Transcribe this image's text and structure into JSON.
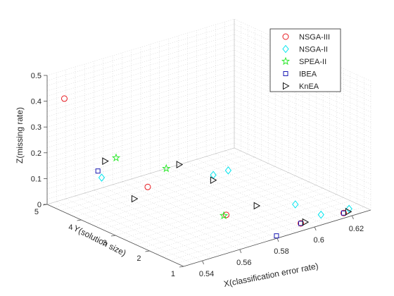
{
  "chart_data": {
    "type": "scatter",
    "title": "",
    "xlabel": "X(classification error rate)",
    "ylabel": "Y(solution size)",
    "zlabel": "Z(missing rate)",
    "xlim": [
      0.53,
      0.63
    ],
    "ylim": [
      1,
      5
    ],
    "zlim": [
      0,
      0.5
    ],
    "x_ticks": [
      "0.54",
      "0.56",
      "0.58",
      "0.6",
      "0.62"
    ],
    "y_ticks": [
      "1",
      "2",
      "3",
      "4",
      "5"
    ],
    "z_ticks": [
      "0",
      "0.1",
      "0.2",
      "0.3",
      "0.4",
      "0.5"
    ],
    "grid": true,
    "legend_position": "top-right",
    "series": [
      {
        "name": "NSGA-III",
        "marker": "circle",
        "color": "#e8181e",
        "points": [
          {
            "x": 0.5392,
            "y": 5.0,
            "z": 0.39
          },
          {
            "x": 0.5564,
            "y": 3.5,
            "z": 0.1
          },
          {
            "x": 0.571,
            "y": 2.0,
            "z": 0.05
          },
          {
            "x": 0.5926,
            "y": 1.0,
            "z": 0.03
          },
          {
            "x": 0.6155,
            "y": 1.0,
            "z": 0.02
          }
        ]
      },
      {
        "name": "NSGA-II",
        "marker": "diamond",
        "color": "#00e5ee",
        "points": [
          {
            "x": 0.5409,
            "y": 4.0,
            "z": 0.14
          },
          {
            "x": 0.5823,
            "y": 3.0,
            "z": 0.12
          },
          {
            "x": 0.5903,
            "y": 3.0,
            "z": 0.12
          },
          {
            "x": 0.5988,
            "y": 1.5,
            "z": 0.06
          },
          {
            "x": 0.6034,
            "y": 1.0,
            "z": 0.04
          },
          {
            "x": 0.6184,
            "y": 1.0,
            "z": 0.03
          }
        ]
      },
      {
        "name": "SPEA-II",
        "marker": "star",
        "color": "#2ee82e",
        "points": [
          {
            "x": 0.5486,
            "y": 4.0,
            "z": 0.2
          },
          {
            "x": 0.5663,
            "y": 3.5,
            "z": 0.15
          },
          {
            "x": 0.5697,
            "y": 2.0,
            "z": 0.05
          }
        ]
      },
      {
        "name": "IBEA",
        "marker": "square",
        "color": "#1a1ab4",
        "points": [
          {
            "x": 0.5389,
            "y": 4.0,
            "z": 0.17
          },
          {
            "x": 0.5796,
            "y": 1.0,
            "z": 0.01
          },
          {
            "x": 0.5926,
            "y": 1.0,
            "z": 0.03
          },
          {
            "x": 0.6155,
            "y": 1.0,
            "z": 0.02
          }
        ]
      },
      {
        "name": "KnEA",
        "marker": "triangle-right",
        "color": "#111111",
        "points": [
          {
            "x": 0.5427,
            "y": 4.0,
            "z": 0.2
          },
          {
            "x": 0.5401,
            "y": 3.0,
            "z": 0.12
          },
          {
            "x": 0.5732,
            "y": 3.5,
            "z": 0.15
          },
          {
            "x": 0.5822,
            "y": 3.0,
            "z": 0.1
          },
          {
            "x": 0.5872,
            "y": 2.0,
            "z": 0.05
          },
          {
            "x": 0.5949,
            "y": 1.0,
            "z": 0.03
          },
          {
            "x": 0.6179,
            "y": 1.0,
            "z": 0.02
          }
        ]
      }
    ]
  }
}
